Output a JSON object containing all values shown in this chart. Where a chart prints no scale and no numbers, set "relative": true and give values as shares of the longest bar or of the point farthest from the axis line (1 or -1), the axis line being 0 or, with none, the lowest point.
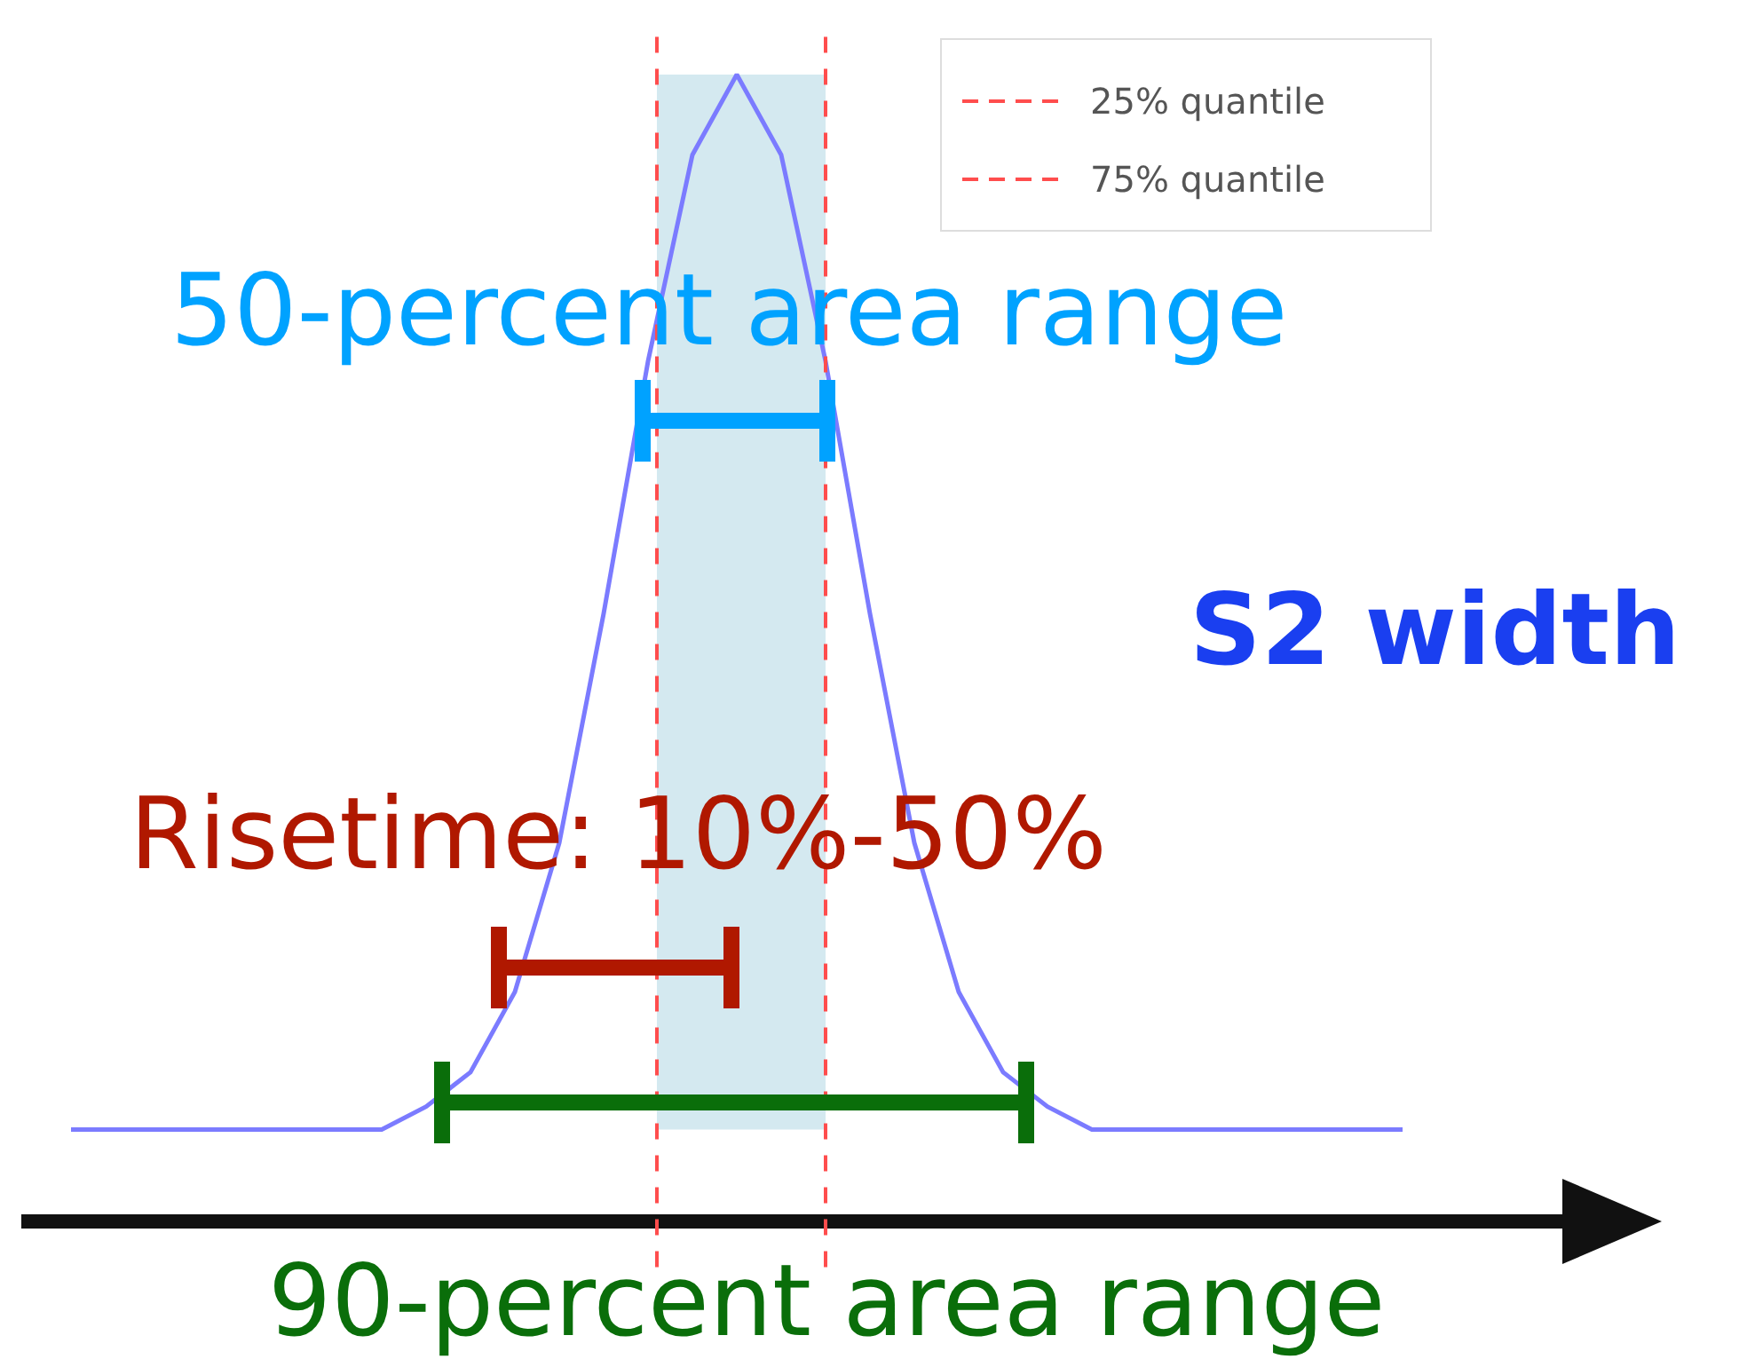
{
  "chart_data": {
    "type": "line",
    "relative": true,
    "categories": [
      null,
      null,
      null,
      null,
      null,
      null,
      null,
      null,
      null,
      null,
      null,
      null,
      null,
      null,
      null,
      null,
      null,
      null,
      null,
      null,
      null,
      null,
      null,
      null,
      null,
      null,
      null,
      null,
      null,
      null,
      null
    ],
    "series": [
      {
        "color": "#7b7bff",
        "values": [
          0.08,
          0.08,
          0.08,
          0.08,
          0.08,
          0.08,
          0.08,
          0.08,
          0.1,
          0.13,
          0.2,
          0.33,
          0.53,
          0.75,
          0.93,
          1,
          0.93,
          0.75,
          0.53,
          0.33,
          0.2,
          0.13,
          0.1,
          0.08,
          0.08,
          0.08,
          0.08,
          0.08,
          0.08,
          0.08,
          0.08
        ]
      }
    ],
    "annotations": [
      "50-percent area range",
      "S2 width",
      "Risetime: 10%-50%",
      "90-percent area range",
      "25% quantile",
      "75% quantile"
    ],
    "marker": "none",
    "line_style": "solid"
  }
}
